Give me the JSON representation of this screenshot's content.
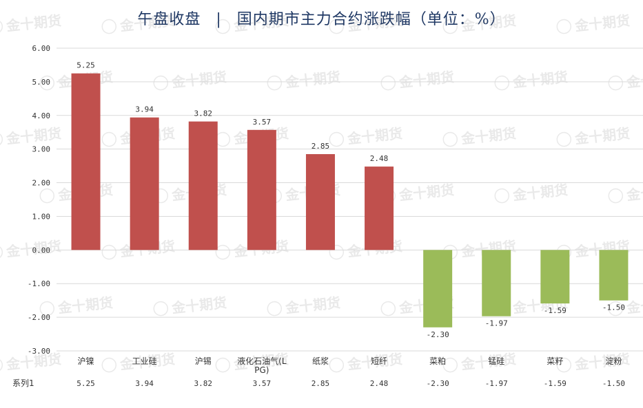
{
  "title": {
    "left": "午盘收盘",
    "separator": "|",
    "right": "国内期市主力合约涨跌幅（单位：%）"
  },
  "watermark": "金十期货",
  "colors": {
    "positive": "#c0504d",
    "negative": "#9bbb59",
    "title": "#1f3864",
    "grid": "#d9d9d9"
  },
  "chart_data": {
    "type": "bar",
    "categories": [
      "沪镍",
      "工业硅",
      "沪锡",
      "液化石油气(LPG)",
      "纸浆",
      "短纤",
      "菜粕",
      "锰硅",
      "菜籽",
      "淀粉"
    ],
    "category_lines": [
      [
        "沪镍"
      ],
      [
        "工业硅"
      ],
      [
        "沪锡"
      ],
      [
        "液化石油气(L",
        "PG)"
      ],
      [
        "纸浆"
      ],
      [
        "短纤"
      ],
      [
        "菜粕"
      ],
      [
        "锰硅"
      ],
      [
        "菜籽"
      ],
      [
        "淀粉"
      ]
    ],
    "series": [
      {
        "name": "系列1",
        "values": [
          5.25,
          3.94,
          3.82,
          3.57,
          2.85,
          2.48,
          -2.3,
          -1.97,
          -1.59,
          -1.5
        ],
        "labels": [
          "5.25",
          "3.94",
          "3.82",
          "3.57",
          "2.85",
          "2.48",
          "-2.30",
          "-1.97",
          "-1.59",
          "-1.50"
        ]
      }
    ],
    "yticks": [
      "6.00",
      "5.00",
      "4.00",
      "3.00",
      "2.00",
      "1.00",
      "0.00",
      "-1.00",
      "-2.00",
      "-3.00"
    ],
    "ylim": [
      -3,
      6
    ],
    "grid": true,
    "data_table": true
  }
}
